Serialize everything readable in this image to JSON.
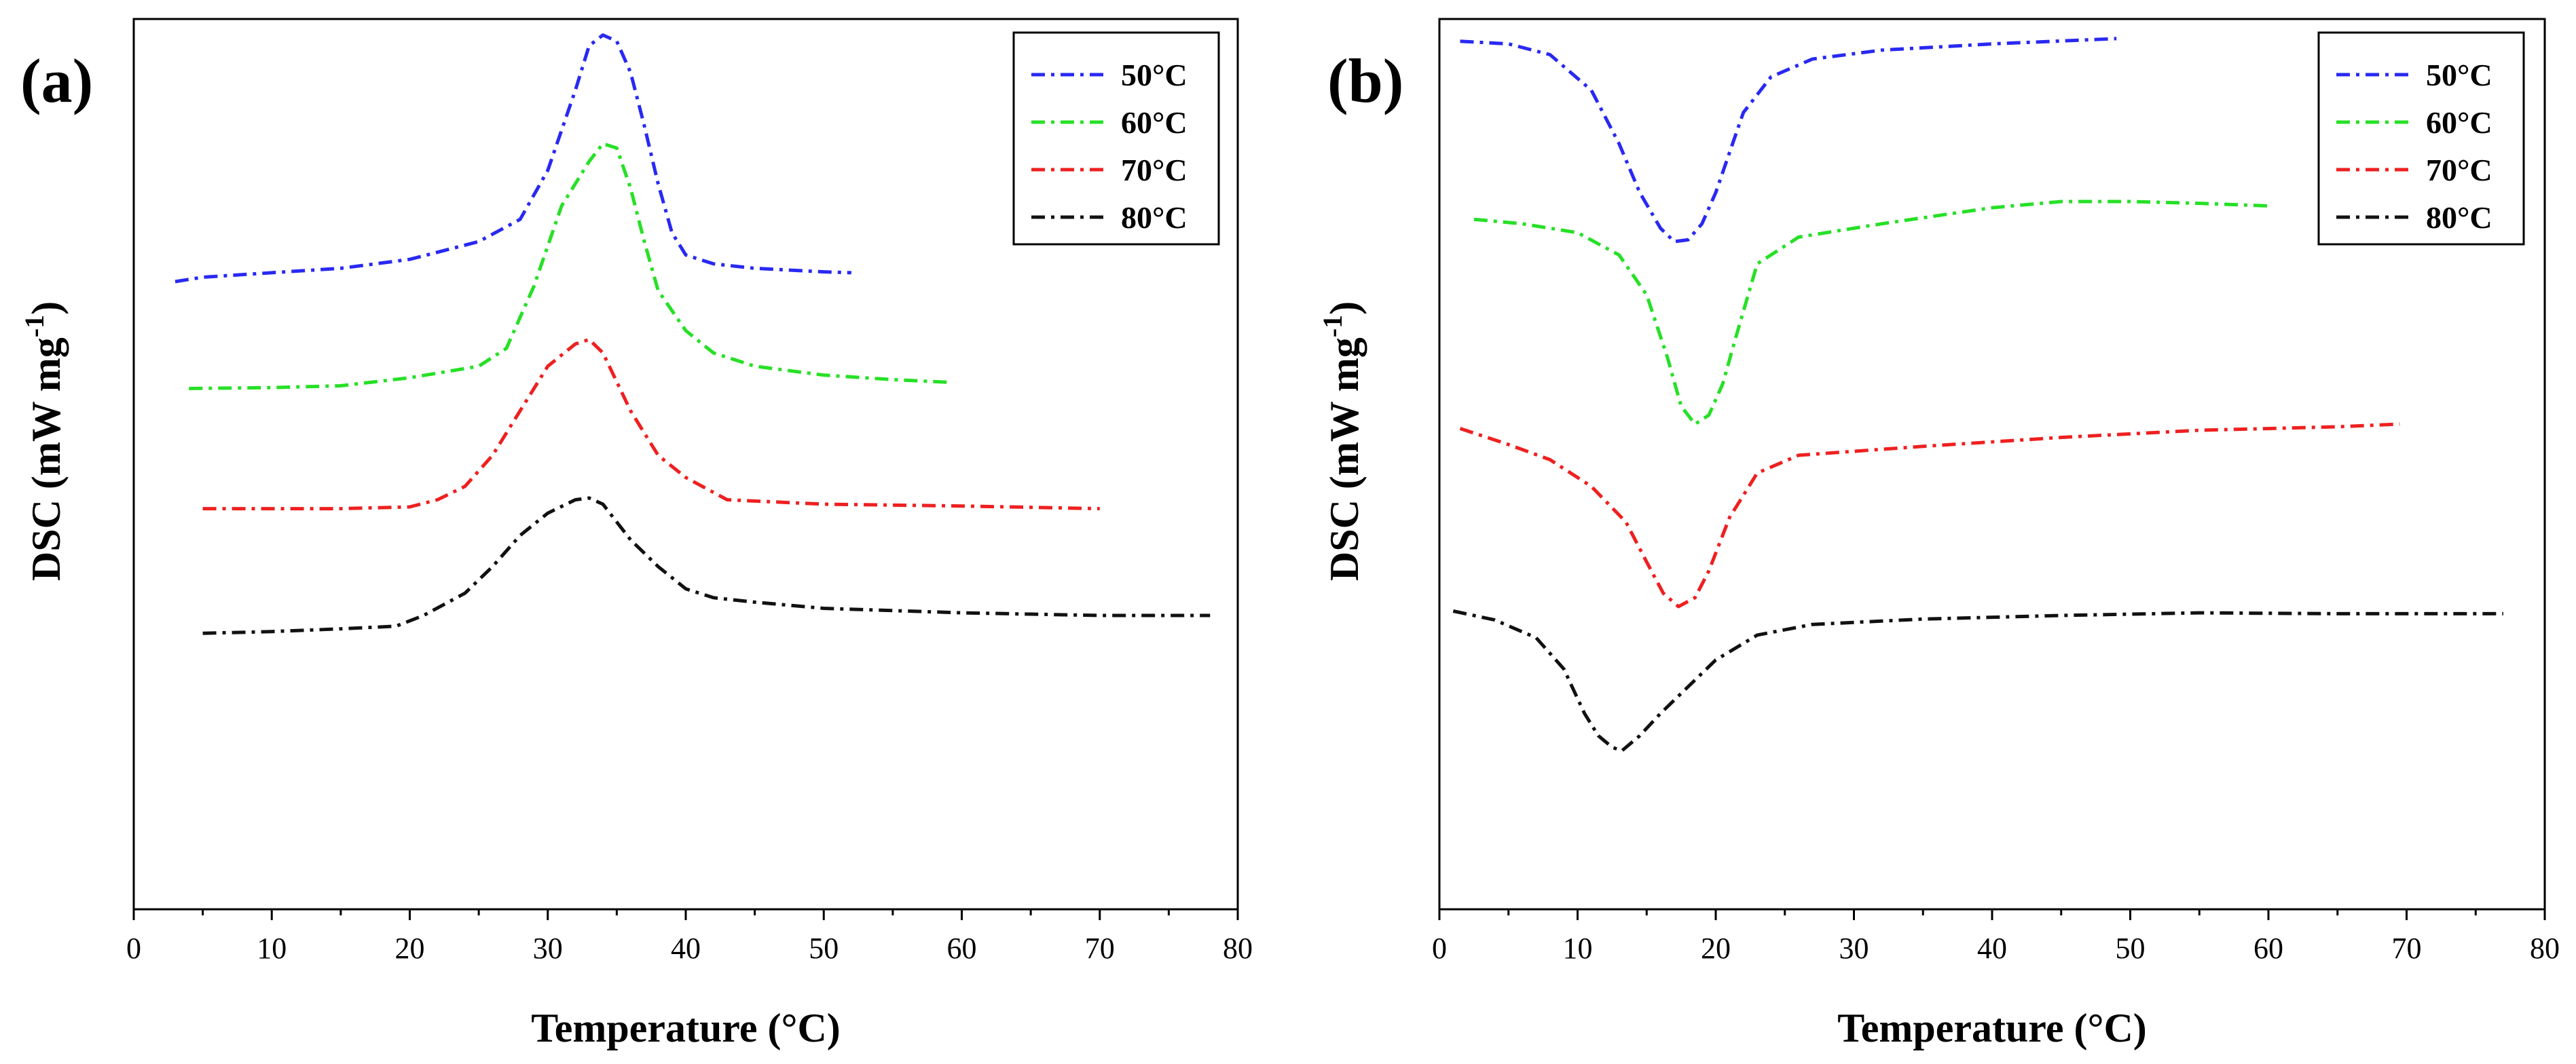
{
  "colors": {
    "s50": "#2929f2",
    "s60": "#26e026",
    "s70": "#ee2020",
    "s80": "#111111"
  },
  "chart_data": [
    {
      "panel_label": "(a)",
      "type": "line",
      "xlabel_main": "Temperature (",
      "xlabel_unit": "°C)",
      "ylabel_main": "DSC (mW mg",
      "ylabel_sup": "-1",
      "ylabel_close": ")",
      "xlim": [
        0,
        80
      ],
      "xticks": [
        "0",
        "10",
        "20",
        "30",
        "40",
        "50",
        "60",
        "70",
        "80"
      ],
      "ylim": [
        0,
        10
      ],
      "y_ticks_labeled": false,
      "legend_position": "top-right",
      "series": [
        {
          "name": "50°C",
          "color_key": "s50",
          "points": [
            [
              3,
              7.05
            ],
            [
              5,
              7.1
            ],
            [
              10,
              7.15
            ],
            [
              15,
              7.2
            ],
            [
              20,
              7.3
            ],
            [
              25,
              7.5
            ],
            [
              28,
              7.75
            ],
            [
              30,
              8.3
            ],
            [
              32,
              9.2
            ],
            [
              33,
              9.7
            ],
            [
              34,
              9.82
            ],
            [
              35,
              9.75
            ],
            [
              36,
              9.4
            ],
            [
              37,
              8.8
            ],
            [
              38,
              8.15
            ],
            [
              39,
              7.6
            ],
            [
              40,
              7.35
            ],
            [
              42,
              7.25
            ],
            [
              45,
              7.2
            ],
            [
              50,
              7.16
            ],
            [
              52,
              7.15
            ]
          ]
        },
        {
          "name": "60°C",
          "color_key": "s60",
          "points": [
            [
              4,
              5.85
            ],
            [
              10,
              5.86
            ],
            [
              15,
              5.88
            ],
            [
              20,
              5.97
            ],
            [
              25,
              6.1
            ],
            [
              27,
              6.3
            ],
            [
              29,
              7.0
            ],
            [
              31,
              7.9
            ],
            [
              33,
              8.4
            ],
            [
              34,
              8.6
            ],
            [
              35,
              8.55
            ],
            [
              36,
              8.1
            ],
            [
              37,
              7.5
            ],
            [
              38,
              6.95
            ],
            [
              40,
              6.5
            ],
            [
              42,
              6.25
            ],
            [
              45,
              6.1
            ],
            [
              50,
              6.0
            ],
            [
              55,
              5.95
            ],
            [
              59,
              5.92
            ]
          ]
        },
        {
          "name": "70°C",
          "color_key": "s70",
          "points": [
            [
              5,
              4.5
            ],
            [
              10,
              4.5
            ],
            [
              15,
              4.5
            ],
            [
              20,
              4.52
            ],
            [
              22,
              4.6
            ],
            [
              24,
              4.75
            ],
            [
              26,
              5.1
            ],
            [
              28,
              5.6
            ],
            [
              30,
              6.1
            ],
            [
              32,
              6.35
            ],
            [
              33,
              6.4
            ],
            [
              34,
              6.25
            ],
            [
              36,
              5.6
            ],
            [
              38,
              5.1
            ],
            [
              40,
              4.85
            ],
            [
              43,
              4.6
            ],
            [
              50,
              4.55
            ],
            [
              60,
              4.53
            ],
            [
              70,
              4.5
            ]
          ]
        },
        {
          "name": "80°C",
          "color_key": "s80",
          "points": [
            [
              5,
              3.1
            ],
            [
              10,
              3.12
            ],
            [
              15,
              3.15
            ],
            [
              19,
              3.18
            ],
            [
              21,
              3.3
            ],
            [
              24,
              3.55
            ],
            [
              26,
              3.85
            ],
            [
              28,
              4.2
            ],
            [
              30,
              4.45
            ],
            [
              32,
              4.6
            ],
            [
              33,
              4.62
            ],
            [
              34,
              4.55
            ],
            [
              36,
              4.15
            ],
            [
              38,
              3.85
            ],
            [
              40,
              3.6
            ],
            [
              42,
              3.5
            ],
            [
              45,
              3.45
            ],
            [
              50,
              3.38
            ],
            [
              60,
              3.33
            ],
            [
              70,
              3.3
            ],
            [
              78,
              3.3
            ]
          ]
        }
      ]
    },
    {
      "panel_label": "(b)",
      "type": "line",
      "xlabel_main": "Temperature (",
      "xlabel_unit": "°C)",
      "ylabel_main": "DSC (mW mg",
      "ylabel_sup": "-1",
      "ylabel_close": ")",
      "xlim": [
        0,
        80
      ],
      "xticks": [
        "0",
        "10",
        "20",
        "30",
        "40",
        "50",
        "60",
        "70",
        "80"
      ],
      "ylim": [
        0,
        10
      ],
      "y_ticks_labeled": false,
      "legend_position": "top-right",
      "series": [
        {
          "name": "50°C",
          "color_key": "s50",
          "points": [
            [
              1.5,
              9.75
            ],
            [
              5,
              9.72
            ],
            [
              8,
              9.6
            ],
            [
              11,
              9.2
            ],
            [
              13,
              8.6
            ],
            [
              14.5,
              8.05
            ],
            [
              16,
              7.65
            ],
            [
              17,
              7.5
            ],
            [
              18,
              7.52
            ],
            [
              19,
              7.7
            ],
            [
              20,
              8.05
            ],
            [
              21,
              8.5
            ],
            [
              22,
              8.95
            ],
            [
              24,
              9.35
            ],
            [
              27,
              9.55
            ],
            [
              32,
              9.65
            ],
            [
              40,
              9.72
            ],
            [
              49,
              9.78
            ]
          ]
        },
        {
          "name": "60°C",
          "color_key": "s60",
          "points": [
            [
              2.5,
              7.75
            ],
            [
              6,
              7.7
            ],
            [
              10,
              7.6
            ],
            [
              13,
              7.35
            ],
            [
              15,
              6.9
            ],
            [
              16.5,
              6.2
            ],
            [
              17.5,
              5.65
            ],
            [
              18.5,
              5.45
            ],
            [
              19.5,
              5.55
            ],
            [
              20.5,
              5.9
            ],
            [
              21.5,
              6.45
            ],
            [
              23,
              7.25
            ],
            [
              26,
              7.55
            ],
            [
              32,
              7.7
            ],
            [
              40,
              7.88
            ],
            [
              45,
              7.95
            ],
            [
              50,
              7.95
            ],
            [
              55,
              7.93
            ],
            [
              60,
              7.9
            ]
          ]
        },
        {
          "name": "70°C",
          "color_key": "s70",
          "points": [
            [
              1.5,
              5.4
            ],
            [
              5,
              5.22
            ],
            [
              8,
              5.05
            ],
            [
              11,
              4.75
            ],
            [
              13.5,
              4.35
            ],
            [
              15,
              3.9
            ],
            [
              16.2,
              3.55
            ],
            [
              17.3,
              3.4
            ],
            [
              18.5,
              3.5
            ],
            [
              19.5,
              3.8
            ],
            [
              21,
              4.4
            ],
            [
              23,
              4.9
            ],
            [
              26,
              5.1
            ],
            [
              35,
              5.2
            ],
            [
              45,
              5.3
            ],
            [
              55,
              5.38
            ],
            [
              65,
              5.42
            ],
            [
              69.5,
              5.45
            ]
          ]
        },
        {
          "name": "80°C",
          "color_key": "s80",
          "points": [
            [
              1,
              3.35
            ],
            [
              4,
              3.25
            ],
            [
              7,
              3.05
            ],
            [
              9,
              2.7
            ],
            [
              10.5,
              2.2
            ],
            [
              11.5,
              1.95
            ],
            [
              12.5,
              1.82
            ],
            [
              13.2,
              1.78
            ],
            [
              14.5,
              1.95
            ],
            [
              16,
              2.2
            ],
            [
              18,
              2.5
            ],
            [
              20,
              2.8
            ],
            [
              23,
              3.08
            ],
            [
              27,
              3.2
            ],
            [
              35,
              3.26
            ],
            [
              45,
              3.3
            ],
            [
              55,
              3.33
            ],
            [
              65,
              3.32
            ],
            [
              77,
              3.32
            ]
          ]
        }
      ]
    }
  ]
}
